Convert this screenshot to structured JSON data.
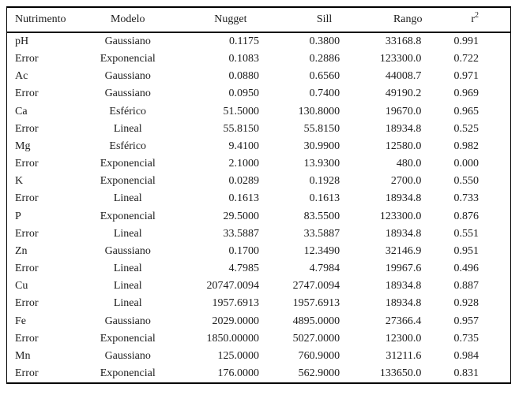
{
  "table": {
    "columns": [
      {
        "key": "nutrimento",
        "label": "Nutrimento"
      },
      {
        "key": "modelo",
        "label": "Modelo"
      },
      {
        "key": "nugget",
        "label": "Nugget"
      },
      {
        "key": "sill",
        "label": "Sill"
      },
      {
        "key": "rango",
        "label": "Rango"
      },
      {
        "key": "r2",
        "label": "r2",
        "base": "r",
        "sup": "2"
      }
    ],
    "rows": [
      [
        "pH",
        "Gaussiano",
        "0.1175",
        "0.3800",
        "33168.8",
        "0.991"
      ],
      [
        "Error",
        "Exponencial",
        "0.1083",
        "0.2886",
        "123300.0",
        "0.722"
      ],
      [
        "Ac",
        "Gaussiano",
        "0.0880",
        "0.6560",
        "44008.7",
        "0.971"
      ],
      [
        "Error",
        "Gaussiano",
        "0.0950",
        "0.7400",
        "49190.2",
        "0.969"
      ],
      [
        "Ca",
        "Esférico",
        "51.5000",
        "130.8000",
        "19670.0",
        "0.965"
      ],
      [
        "Error",
        "Lineal",
        "55.8150",
        "55.8150",
        "18934.8",
        "0.525"
      ],
      [
        "Mg",
        "Esférico",
        "9.4100",
        "30.9900",
        "12580.0",
        "0.982"
      ],
      [
        "Error",
        "Exponencial",
        "2.1000",
        "13.9300",
        "480.0",
        "0.000"
      ],
      [
        "K",
        "Exponencial",
        "0.0289",
        "0.1928",
        "2700.0",
        "0.550"
      ],
      [
        "Error",
        "Lineal",
        "0.1613",
        "0.1613",
        "18934.8",
        "0.733"
      ],
      [
        "P",
        "Exponencial",
        "29.5000",
        "83.5500",
        "123300.0",
        "0.876"
      ],
      [
        "Error",
        "Lineal",
        "33.5887",
        "33.5887",
        "18934.8",
        "0.551"
      ],
      [
        "Zn",
        "Gaussiano",
        "0.1700",
        "12.3490",
        "32146.9",
        "0.951"
      ],
      [
        "Error",
        "Lineal",
        "4.7985",
        "4.7984",
        "19967.6",
        "0.496"
      ],
      [
        "Cu",
        "Lineal",
        "20747.0094",
        "2747.0094",
        "18934.8",
        "0.887"
      ],
      [
        "Error",
        "Lineal",
        "1957.6913",
        "1957.6913",
        "18934.8",
        "0.928"
      ],
      [
        "Fe",
        "Gaussiano",
        "2029.0000",
        "4895.0000",
        "27366.4",
        "0.957"
      ],
      [
        "Error",
        "Exponencial",
        "1850.00000",
        "5027.0000",
        "12300.0",
        "0.735"
      ],
      [
        "Mn",
        "Gaussiano",
        "125.0000",
        "760.9000",
        "31211.6",
        "0.984"
      ],
      [
        "Error",
        "Exponencial",
        "176.0000",
        "562.9000",
        "133650.0",
        "0.831"
      ]
    ]
  }
}
